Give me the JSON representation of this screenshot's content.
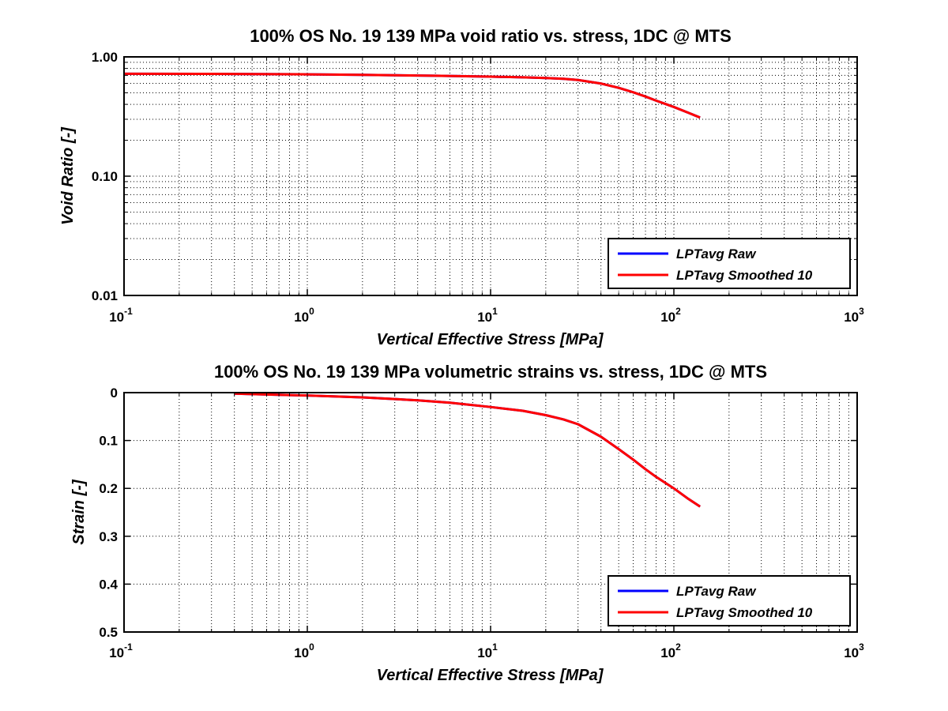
{
  "chart_data": [
    {
      "type": "line",
      "title": "100% OS No. 19 139 MPa void ratio vs. stress, 1DC @ MTS",
      "xlabel": "Vertical Effective Stress [MPa]",
      "ylabel": "Void Ratio [-]",
      "x_scale": "log",
      "y_scale": "log",
      "xlim": [
        0.1,
        1000
      ],
      "ylim": [
        0.01,
        1.0
      ],
      "x_ticks": [
        0.1,
        1,
        10,
        100,
        1000
      ],
      "x_tick_labels": [
        {
          "base": "10",
          "exp": "-1"
        },
        {
          "base": "10",
          "exp": "0"
        },
        {
          "base": "10",
          "exp": "1"
        },
        {
          "base": "10",
          "exp": "2"
        },
        {
          "base": "10",
          "exp": "3"
        }
      ],
      "y_ticks": [
        0.01,
        0.1,
        1.0
      ],
      "y_tick_labels": [
        "0.01",
        "0.10",
        "1.00"
      ],
      "grid": true,
      "legend_position": "bottom-right",
      "series": [
        {
          "name": "LPTavg Raw",
          "color": "#0000ff",
          "x": [
            0.1,
            0.3,
            0.5,
            1,
            2,
            5,
            10,
            15,
            20,
            25,
            30,
            40,
            50,
            60,
            70,
            80,
            100,
            120,
            139
          ],
          "y": [
            0.722,
            0.72,
            0.718,
            0.714,
            0.707,
            0.695,
            0.683,
            0.674,
            0.665,
            0.655,
            0.64,
            0.598,
            0.55,
            0.505,
            0.465,
            0.43,
            0.38,
            0.34,
            0.31
          ]
        },
        {
          "name": "LPTavg Smoothed 10",
          "color": "#ff0000",
          "x": [
            0.1,
            0.3,
            0.5,
            1,
            2,
            5,
            10,
            15,
            20,
            25,
            30,
            40,
            50,
            60,
            70,
            80,
            100,
            120,
            139
          ],
          "y": [
            0.722,
            0.72,
            0.718,
            0.714,
            0.707,
            0.695,
            0.683,
            0.674,
            0.665,
            0.655,
            0.64,
            0.598,
            0.55,
            0.505,
            0.465,
            0.43,
            0.38,
            0.34,
            0.31
          ]
        }
      ]
    },
    {
      "type": "line",
      "title": "100% OS No. 19 139 MPa volumetric strains vs. stress, 1DC @ MTS",
      "xlabel": "Vertical Effective Stress [MPa]",
      "ylabel": "Strain [-]",
      "x_scale": "log",
      "y_scale": "linear",
      "y_reversed": true,
      "xlim": [
        0.1,
        1000
      ],
      "ylim": [
        0,
        0.5
      ],
      "x_ticks": [
        0.1,
        1,
        10,
        100,
        1000
      ],
      "x_tick_labels": [
        {
          "base": "10",
          "exp": "-1"
        },
        {
          "base": "10",
          "exp": "0"
        },
        {
          "base": "10",
          "exp": "1"
        },
        {
          "base": "10",
          "exp": "2"
        },
        {
          "base": "10",
          "exp": "3"
        }
      ],
      "y_ticks": [
        0,
        0.1,
        0.2,
        0.3,
        0.4,
        0.5
      ],
      "y_tick_labels": [
        "0",
        "0.1",
        "0.2",
        "0.3",
        "0.4",
        "0.5"
      ],
      "grid": true,
      "legend_position": "bottom-right",
      "series": [
        {
          "name": "LPTavg Raw",
          "color": "#0000ff",
          "x": [
            0.4,
            0.6,
            1,
            2,
            4,
            6,
            10,
            15,
            20,
            25,
            30,
            40,
            50,
            60,
            70,
            80,
            100,
            120,
            139
          ],
          "y": [
            0.002,
            0.004,
            0.006,
            0.01,
            0.016,
            0.021,
            0.03,
            0.038,
            0.047,
            0.056,
            0.066,
            0.092,
            0.118,
            0.14,
            0.16,
            0.176,
            0.2,
            0.222,
            0.238
          ]
        },
        {
          "name": "LPTavg Smoothed 10",
          "color": "#ff0000",
          "x": [
            0.4,
            0.6,
            1,
            2,
            4,
            6,
            10,
            15,
            20,
            25,
            30,
            40,
            50,
            60,
            70,
            80,
            100,
            120,
            139
          ],
          "y": [
            0.002,
            0.004,
            0.006,
            0.01,
            0.016,
            0.021,
            0.03,
            0.038,
            0.047,
            0.056,
            0.066,
            0.092,
            0.118,
            0.14,
            0.16,
            0.176,
            0.2,
            0.222,
            0.238
          ]
        }
      ]
    }
  ]
}
